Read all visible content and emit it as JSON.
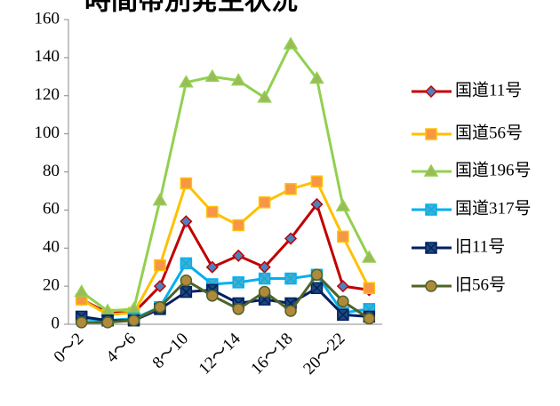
{
  "chart_data": {
    "type": "line",
    "title": "時間帯別発生状況",
    "categories": [
      "0～2",
      null,
      "4～6",
      null,
      "8～10",
      null,
      "12～14",
      null,
      "16～18",
      null,
      "20～22",
      null
    ],
    "series": [
      {
        "name": "国道11号",
        "color": "#c00000",
        "marker": "diamond",
        "marker_fill": "#4f81bd",
        "values": [
          13,
          6,
          6,
          20,
          54,
          30,
          36,
          30,
          45,
          63,
          20,
          18
        ]
      },
      {
        "name": "国道56号",
        "color": "#ffc000",
        "marker": "square",
        "marker_fill": "#f79646",
        "values": [
          13,
          5,
          6,
          31,
          74,
          59,
          52,
          64,
          71,
          75,
          46,
          19
        ]
      },
      {
        "name": "国道196号",
        "color": "#92d050",
        "marker": "triangle",
        "marker_fill": "#9bbb59",
        "values": [
          17,
          7,
          8,
          65,
          127,
          130,
          128,
          119,
          147,
          129,
          62,
          35
        ]
      },
      {
        "name": "国道317号",
        "color": "#00b0f0",
        "marker": "xsquare",
        "marker_fill": "#4bacc6",
        "values": [
          3,
          2,
          3,
          9,
          32,
          21,
          22,
          24,
          24,
          26,
          6,
          8
        ]
      },
      {
        "name": "旧11号",
        "color": "#002060",
        "marker": "xsquare",
        "marker_fill": "#1f497d",
        "values": [
          4,
          2,
          2,
          8,
          17,
          18,
          11,
          13,
          11,
          19,
          5,
          4
        ]
      },
      {
        "name": "旧56号",
        "color": "#4f6228",
        "marker": "circle",
        "marker_fill": "#b08a3c",
        "values": [
          1,
          1,
          2,
          9,
          23,
          15,
          8,
          17,
          7,
          26,
          12,
          3
        ]
      }
    ],
    "ylim": [
      0,
      160
    ],
    "yticks": [
      0,
      20,
      40,
      60,
      80,
      100,
      120,
      140,
      160
    ],
    "grid": false,
    "legend": "right"
  }
}
